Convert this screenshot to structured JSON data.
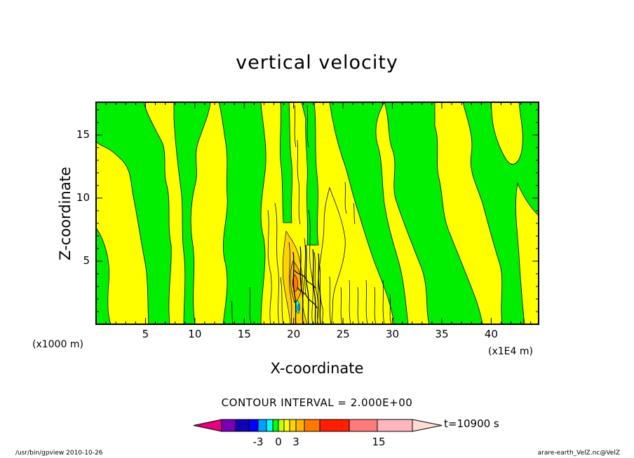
{
  "title": "vertical velocity",
  "x_label": "X-coordinate",
  "y_label": "Z-coordinate",
  "x_unit": "(x1E4 m)",
  "z_unit": "(x1000 m)",
  "contour_interval": "CONTOUR INTERVAL = 2.000E+00",
  "time_label": "t=10900 s",
  "footer_left": "/usr/bin/gpview  2010-10-26",
  "footer_right": "arare-earth_VelZ.nc@VelZ",
  "colors": {
    "background": "#ffffff",
    "positive_fill": "#ffff00",
    "negative_fill": "#00ee00",
    "contour_line": "#000000"
  },
  "chart_data": {
    "type": "heatmap",
    "title": "vertical velocity",
    "xlabel": "X-coordinate",
    "ylabel": "Z-coordinate",
    "xlim": [
      0,
      44.8
    ],
    "ylim": [
      0,
      17.6
    ],
    "x_ticks": [
      "5",
      "10",
      "15",
      "20",
      "25",
      "30",
      "35",
      "40"
    ],
    "y_ticks": [
      "5",
      "10",
      "15"
    ],
    "x_tick_values": [
      5,
      10,
      15,
      20,
      25,
      30,
      35,
      40
    ],
    "y_tick_values": [
      5,
      10,
      15
    ],
    "grid": false,
    "colorbar": {
      "colors": [
        "#e6007e",
        "#7a00b4",
        "#1400b4",
        "#0000ff",
        "#00a0ff",
        "#00ffff",
        "#00ff00",
        "#c8ff00",
        "#ffff00",
        "#ffd200",
        "#ffb400",
        "#ff7800",
        "#ff1e00",
        "#ff7a7a",
        "#ffb4be",
        "#ffdcd2"
      ],
      "labels": [
        "-3",
        "0",
        "3",
        "15"
      ],
      "label_values": [
        -3,
        0,
        3,
        15
      ]
    }
  }
}
